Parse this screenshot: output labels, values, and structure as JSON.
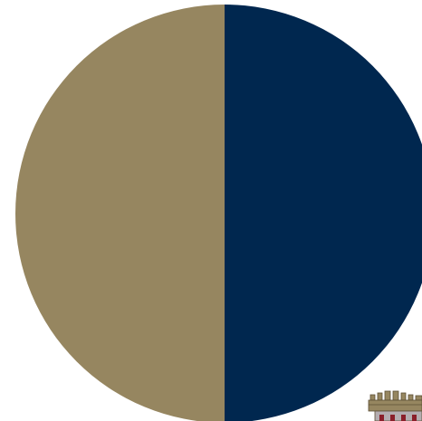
{
  "disc": {
    "left_color": "#968660",
    "right_color": "#00274f",
    "icon": "split-color-disc"
  },
  "emblem": {
    "icon": "crenellated-tower-emblem",
    "colors": {
      "stone": "#968660",
      "outline": "#5c4f35",
      "gate": "#b4acb0",
      "roof": "#8a1e2a"
    }
  },
  "background": "#ffffff"
}
